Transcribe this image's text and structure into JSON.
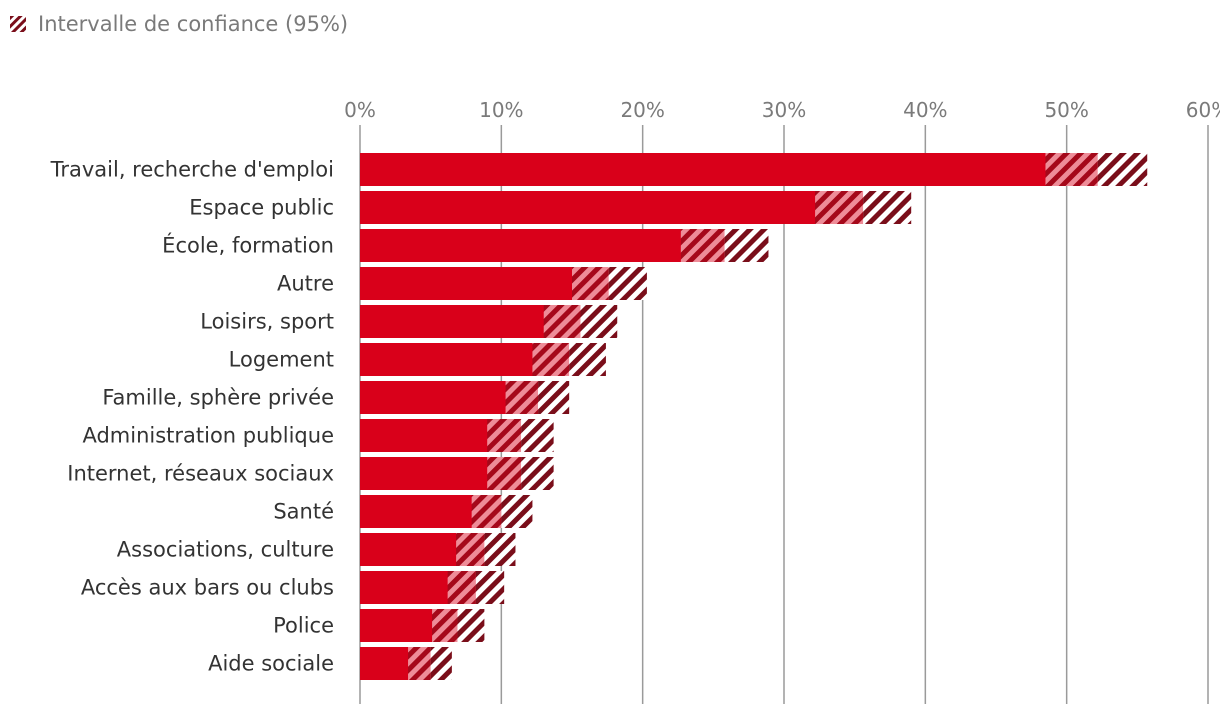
{
  "legend": {
    "label": "Intervalle de confiance (95%)"
  },
  "colors": {
    "bar": "#D9001A",
    "hatch": "#7A0E1A",
    "grid": "#9a9a9a",
    "tick": "#7a7a7a",
    "label": "#333333"
  },
  "chart_data": {
    "type": "bar",
    "orientation": "horizontal",
    "xlim": [
      0,
      60
    ],
    "ticks": [
      0,
      10,
      20,
      30,
      40,
      50,
      60
    ],
    "tick_labels": [
      "0%",
      "10%",
      "20%",
      "30%",
      "40%",
      "50%",
      "60%"
    ],
    "grid": true,
    "legend_position": "top-left",
    "categories": [
      "Travail, recherche d'emploi",
      "Espace public",
      "École, formation",
      "Autre",
      "Loisirs, sport",
      "Logement",
      "Famille, sphère privée",
      "Administration publique",
      "Internet, réseaux sociaux",
      "Santé",
      "Associations, culture",
      "Accès aux bars ou clubs",
      "Police",
      "Aide sociale"
    ],
    "values": [
      52.2,
      35.6,
      25.8,
      17.6,
      15.6,
      14.8,
      12.6,
      11.4,
      11.4,
      10.0,
      8.8,
      8.2,
      6.9,
      5.0
    ],
    "ci_lower": [
      48.5,
      32.2,
      22.7,
      15.0,
      13.0,
      12.2,
      10.3,
      9.0,
      9.0,
      7.9,
      6.8,
      6.2,
      5.1,
      3.4
    ],
    "ci_upper": [
      55.7,
      39.0,
      28.9,
      20.3,
      18.2,
      17.4,
      14.8,
      13.7,
      13.7,
      12.2,
      11.0,
      10.2,
      8.8,
      6.5
    ]
  }
}
